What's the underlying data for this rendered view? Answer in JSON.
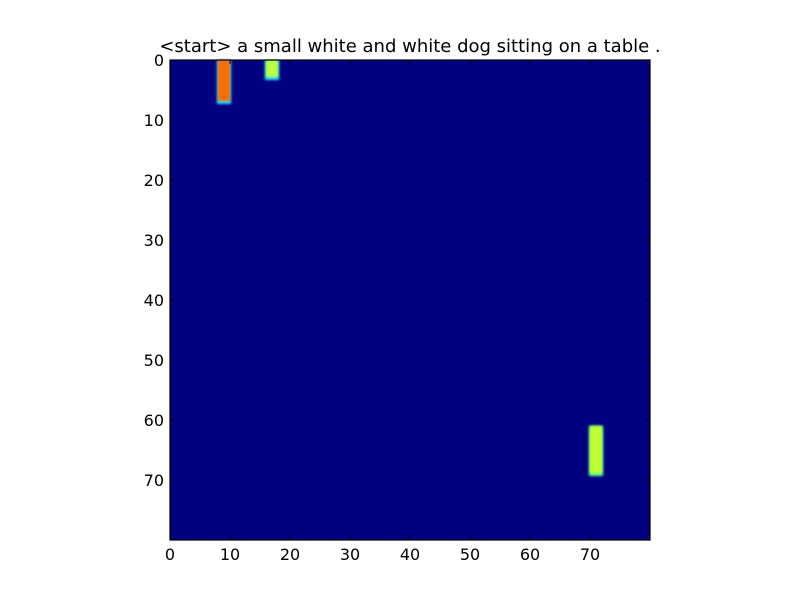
{
  "chart_data": {
    "type": "heatmap",
    "title": "<start> a small white and white dog sitting on a table .",
    "xlabel": "",
    "ylabel": "",
    "xlim": [
      0,
      80
    ],
    "ylim": [
      80,
      0
    ],
    "grid_size": [
      80,
      80
    ],
    "x_ticks": [
      0,
      10,
      20,
      30,
      40,
      50,
      60,
      70
    ],
    "y_ticks": [
      0,
      10,
      20,
      30,
      40,
      50,
      60,
      70
    ],
    "colormap": "jet",
    "background_color": "#000080",
    "axis_color": "#000000",
    "highlights": [
      {
        "x_range": [
          8,
          10
        ],
        "y_range": [
          0,
          7
        ],
        "intensity": 0.82,
        "color": "#ff6a00",
        "edge_color": "#20e0ff"
      },
      {
        "x_range": [
          16,
          18
        ],
        "y_range": [
          0,
          3
        ],
        "intensity": 0.55,
        "color": "#c0ff40",
        "edge_color": "#20e0ff"
      },
      {
        "x_range": [
          70,
          72
        ],
        "y_range": [
          61,
          69
        ],
        "intensity": 0.65,
        "color": "#c0ff30",
        "edge_color": "#60ff90"
      }
    ]
  }
}
